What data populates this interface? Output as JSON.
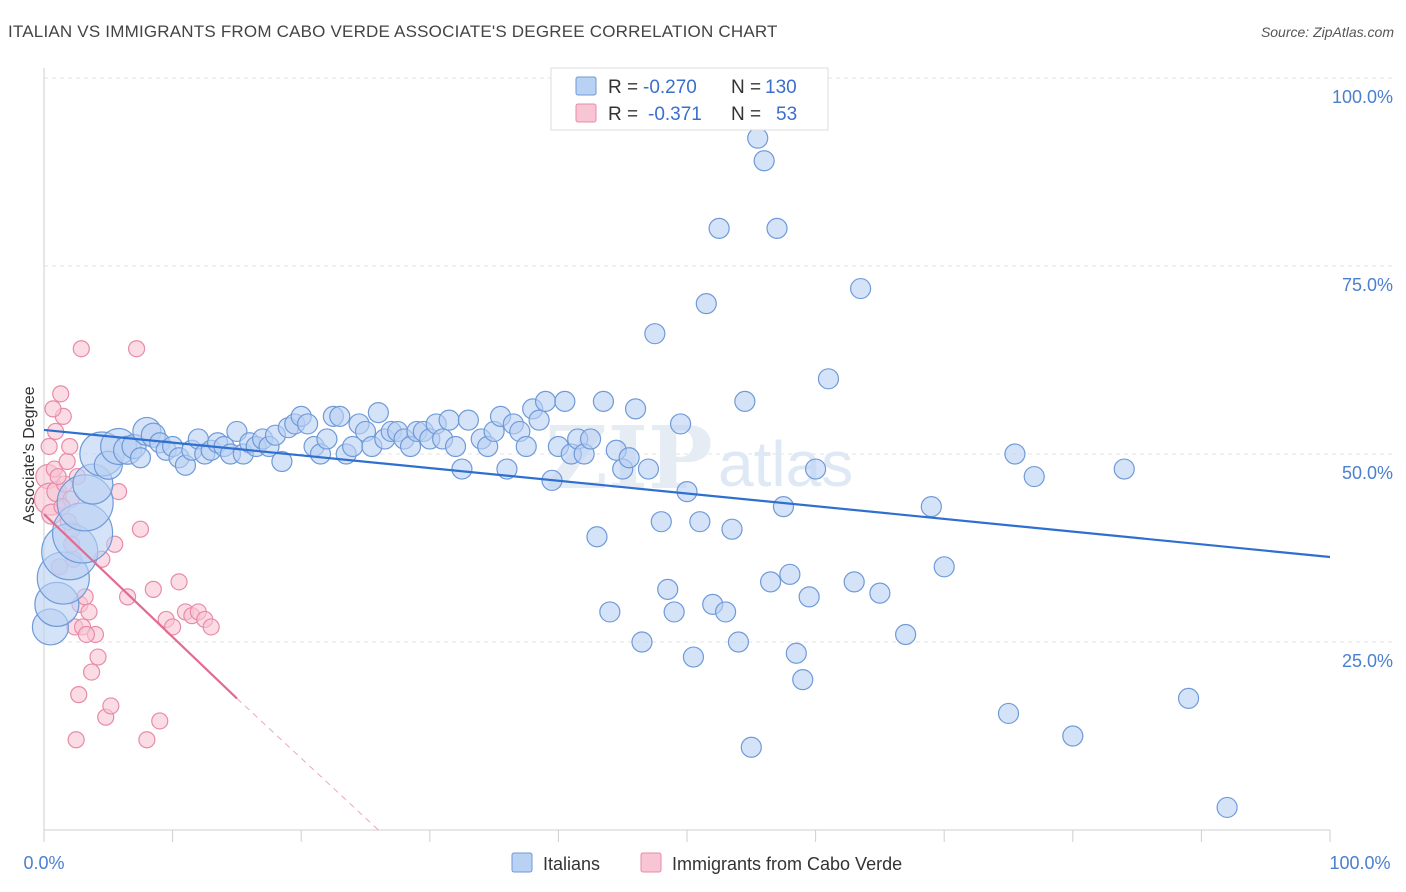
{
  "header": {
    "title": "ITALIAN VS IMMIGRANTS FROM CABO VERDE ASSOCIATE'S DEGREE CORRELATION CHART",
    "source": "Source: ZipAtlas.com"
  },
  "watermark": {
    "zip": "ZIP",
    "atlas": "atlas"
  },
  "legend": {
    "r_label": "R =",
    "n_label": "N =",
    "rows": [
      {
        "r": "-0.270",
        "n": "130",
        "fill": "#b9d1f3",
        "stroke": "#6f9ad8"
      },
      {
        "r": "-0.371",
        "n": "53",
        "fill": "#f8c5d4",
        "stroke": "#e88aa8"
      }
    ]
  },
  "bottom_legend": [
    "Italians",
    "Immigrants from Cabo Verde"
  ],
  "chart_data": {
    "type": "scatter",
    "title": "ITALIAN VS IMMIGRANTS FROM CABO VERDE ASSOCIATE'S DEGREE CORRELATION CHART",
    "xlabel": "",
    "ylabel": "Associate's Degree",
    "xlim": [
      0,
      100
    ],
    "ylim": [
      0,
      100
    ],
    "x_tick_labels": [
      "0.0%",
      "100.0%"
    ],
    "y_tick_labels": [
      "100.0%",
      "75.0%",
      "50.0%",
      "25.0%"
    ],
    "y_tick_values": [
      100,
      75,
      50,
      25
    ],
    "grid": true,
    "legend_position": "top-center",
    "series": [
      {
        "name": "Italians",
        "color": "#6f9ad8",
        "fill": "#b9d1f3",
        "trend": {
          "x": [
            0,
            100
          ],
          "y": [
            53.2,
            36.3
          ],
          "color": "#2f6fd0"
        },
        "points": [
          [
            0.5,
            27,
            18
          ],
          [
            1,
            30,
            22
          ],
          [
            1.5,
            33.5,
            26
          ],
          [
            2,
            37,
            28
          ],
          [
            3,
            39.5,
            30
          ],
          [
            3.2,
            43.5,
            28
          ],
          [
            3.8,
            46,
            20
          ],
          [
            4.5,
            50,
            22
          ],
          [
            5,
            48.5,
            14
          ],
          [
            5.8,
            51,
            18
          ],
          [
            6.5,
            50.5,
            14
          ],
          [
            7,
            51,
            12
          ],
          [
            7.5,
            49.5,
            10
          ],
          [
            8,
            53,
            14
          ],
          [
            8.5,
            52.5,
            12
          ],
          [
            9,
            51.5,
            10
          ],
          [
            9.5,
            50.5,
            10
          ],
          [
            10,
            51,
            10
          ],
          [
            10.5,
            49.5,
            10
          ],
          [
            11,
            48.5,
            10
          ],
          [
            11.5,
            50.5,
            10
          ],
          [
            12,
            52,
            10
          ],
          [
            12.5,
            50,
            10
          ],
          [
            13,
            50.5,
            10
          ],
          [
            13.5,
            51.5,
            10
          ],
          [
            14,
            51,
            10
          ],
          [
            14.5,
            50,
            10
          ],
          [
            15,
            53,
            10
          ],
          [
            15.5,
            50,
            10
          ],
          [
            16,
            51.5,
            10
          ],
          [
            16.5,
            51,
            10
          ],
          [
            17,
            52,
            10
          ],
          [
            17.5,
            51,
            10
          ],
          [
            18,
            52.5,
            10
          ],
          [
            18.5,
            49,
            10
          ],
          [
            19,
            53.5,
            10
          ],
          [
            19.5,
            54,
            10
          ],
          [
            20,
            55,
            10
          ],
          [
            20.5,
            54,
            10
          ],
          [
            21,
            51,
            10
          ],
          [
            21.5,
            50,
            10
          ],
          [
            22,
            52,
            10
          ],
          [
            22.5,
            55,
            10
          ],
          [
            23,
            55,
            10
          ],
          [
            23.5,
            50,
            10
          ],
          [
            24,
            51,
            10
          ],
          [
            24.5,
            54,
            10
          ],
          [
            25,
            53,
            10
          ],
          [
            25.5,
            51,
            10
          ],
          [
            26,
            55.5,
            10
          ],
          [
            26.5,
            52,
            10
          ],
          [
            27,
            53,
            10
          ],
          [
            27.5,
            53,
            10
          ],
          [
            28,
            52,
            10
          ],
          [
            28.5,
            51,
            10
          ],
          [
            29,
            53,
            10
          ],
          [
            29.5,
            53,
            10
          ],
          [
            30,
            52,
            10
          ],
          [
            30.5,
            54,
            10
          ],
          [
            31,
            52,
            10
          ],
          [
            31.5,
            54.5,
            10
          ],
          [
            32,
            51,
            10
          ],
          [
            32.5,
            48,
            10
          ],
          [
            33,
            54.5,
            10
          ],
          [
            34,
            52,
            10
          ],
          [
            34.5,
            51,
            10
          ],
          [
            35,
            53,
            10
          ],
          [
            35.5,
            55,
            10
          ],
          [
            36,
            48,
            10
          ],
          [
            36.5,
            54,
            10
          ],
          [
            37,
            53,
            10
          ],
          [
            37.5,
            51,
            10
          ],
          [
            38,
            56,
            10
          ],
          [
            38.5,
            54.5,
            10
          ],
          [
            39,
            57,
            10
          ],
          [
            39.5,
            46.5,
            10
          ],
          [
            40,
            51,
            10
          ],
          [
            40.5,
            57,
            10
          ],
          [
            41,
            50,
            10
          ],
          [
            41.5,
            52,
            10
          ],
          [
            42,
            50,
            10
          ],
          [
            42.5,
            52,
            10
          ],
          [
            43,
            39,
            10
          ],
          [
            43.5,
            57,
            10
          ],
          [
            44,
            29,
            10
          ],
          [
            44.5,
            50.5,
            10
          ],
          [
            45,
            48,
            10
          ],
          [
            45.5,
            49.5,
            10
          ],
          [
            46,
            56,
            10
          ],
          [
            46.5,
            25,
            10
          ],
          [
            47,
            48,
            10
          ],
          [
            47.5,
            66,
            10
          ],
          [
            48,
            41,
            10
          ],
          [
            48.5,
            32,
            10
          ],
          [
            49,
            29,
            10
          ],
          [
            49.5,
            54,
            10
          ],
          [
            50,
            45,
            10
          ],
          [
            50.5,
            23,
            10
          ],
          [
            51,
            41,
            10
          ],
          [
            51.5,
            70,
            10
          ],
          [
            52,
            30,
            10
          ],
          [
            52.5,
            80,
            10
          ],
          [
            53,
            29,
            10
          ],
          [
            53.5,
            40,
            10
          ],
          [
            54,
            25,
            10
          ],
          [
            54.5,
            57,
            10
          ],
          [
            55,
            11,
            10
          ],
          [
            55.5,
            92,
            10
          ],
          [
            56,
            89,
            10
          ],
          [
            56.5,
            33,
            10
          ],
          [
            57,
            80,
            10
          ],
          [
            57.5,
            43,
            10
          ],
          [
            58,
            34,
            10
          ],
          [
            58.5,
            23.5,
            10
          ],
          [
            59,
            20,
            10
          ],
          [
            59.5,
            31,
            10
          ],
          [
            60,
            48,
            10
          ],
          [
            61,
            60,
            10
          ],
          [
            63,
            33,
            10
          ],
          [
            63.5,
            72,
            10
          ],
          [
            65,
            31.5,
            10
          ],
          [
            67,
            26,
            10
          ],
          [
            69,
            43,
            10
          ],
          [
            70,
            35,
            10
          ],
          [
            75,
            15.5,
            10
          ],
          [
            75.5,
            50,
            10
          ],
          [
            77,
            47,
            10
          ],
          [
            80,
            12.5,
            10
          ],
          [
            84,
            48,
            10
          ],
          [
            89,
            17.5,
            10
          ],
          [
            92,
            3,
            10
          ]
        ]
      },
      {
        "name": "Immigrants from Cabo Verde",
        "color": "#e88aa8",
        "fill": "#f8c5d4",
        "trend": {
          "x": [
            0,
            15
          ],
          "y": [
            42,
            17.5
          ],
          "color": "#e36b93",
          "dashed_extension": {
            "x": [
              15,
              26
            ],
            "y": [
              17.5,
              0
            ]
          }
        },
        "points": [
          [
            0.3,
            47,
            12
          ],
          [
            0.5,
            44,
            16
          ],
          [
            0.6,
            42,
            10
          ],
          [
            0.8,
            48,
            8
          ],
          [
            1,
            45,
            10
          ],
          [
            1.2,
            35,
            8
          ],
          [
            1.3,
            58,
            8
          ],
          [
            1.5,
            55,
            8
          ],
          [
            1.6,
            46,
            8
          ],
          [
            1.8,
            49,
            8
          ],
          [
            2,
            51,
            8
          ],
          [
            2.1,
            44,
            8
          ],
          [
            2.2,
            40,
            8
          ],
          [
            2.3,
            36,
            8
          ],
          [
            2.4,
            27,
            8
          ],
          [
            2.5,
            12,
            8
          ],
          [
            2.6,
            47,
            8
          ],
          [
            2.7,
            18,
            8
          ],
          [
            2.8,
            30,
            8
          ],
          [
            2.9,
            64,
            8
          ],
          [
            3,
            27,
            8
          ],
          [
            3.2,
            31,
            8
          ],
          [
            3.5,
            29,
            8
          ],
          [
            3.7,
            21,
            8
          ],
          [
            4,
            26,
            8
          ],
          [
            4.2,
            23,
            8
          ],
          [
            4.5,
            36,
            8
          ],
          [
            4.8,
            15,
            8
          ],
          [
            5.2,
            16.5,
            8
          ],
          [
            5.5,
            38,
            8
          ],
          [
            5.8,
            45,
            8
          ],
          [
            6.5,
            31,
            8
          ],
          [
            7.2,
            64,
            8
          ],
          [
            7.5,
            40,
            8
          ],
          [
            8,
            12,
            8
          ],
          [
            8.5,
            32,
            8
          ],
          [
            9,
            14.5,
            8
          ],
          [
            9.5,
            28,
            8
          ],
          [
            10,
            27,
            8
          ],
          [
            10.5,
            33,
            8
          ],
          [
            11,
            29,
            8
          ],
          [
            11.5,
            28.5,
            8
          ],
          [
            12,
            29,
            8
          ],
          [
            12.5,
            28,
            8
          ],
          [
            13,
            27,
            8
          ],
          [
            0.4,
            51,
            8
          ],
          [
            0.7,
            56,
            8
          ],
          [
            1.1,
            47,
            8
          ],
          [
            1.4,
            43,
            8
          ],
          [
            1.9,
            41,
            8
          ],
          [
            2.15,
            38,
            8
          ],
          [
            3.3,
            26,
            8
          ],
          [
            0.9,
            53,
            8
          ]
        ]
      }
    ]
  }
}
